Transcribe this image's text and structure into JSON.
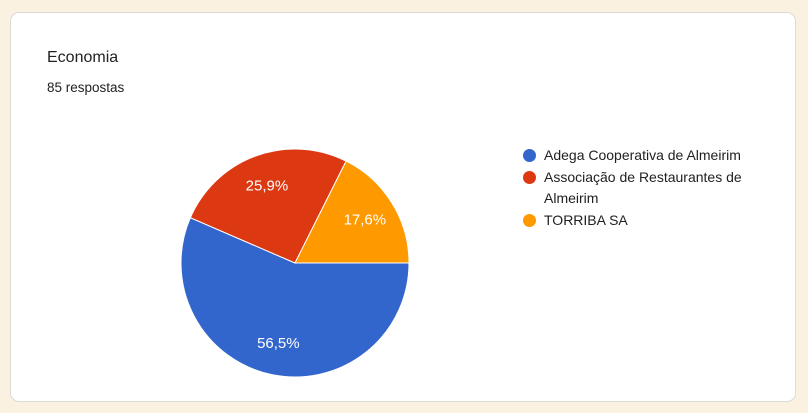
{
  "page": {
    "background_color": "#faf1e1"
  },
  "card": {
    "title": "Economia",
    "subtitle": "85 respostas"
  },
  "chart_data": {
    "type": "pie",
    "title": "Economia",
    "subtitle": "85 respostas",
    "total_responses": 85,
    "categories": [
      "Adega Cooperativa de Almeirim",
      "Associação de Restaurantes de Almeirim",
      "TORRIBA SA"
    ],
    "values": [
      56.5,
      25.9,
      17.6
    ],
    "slice_labels": [
      "56,5%",
      "25,9%",
      "17,6%"
    ],
    "colors": [
      "#3366cc",
      "#dc3912",
      "#ff9900"
    ],
    "slice_label_color": "#ffffff",
    "start_angle_deg": 0,
    "direction": "clockwise",
    "legend_position": "right",
    "grid": false
  }
}
